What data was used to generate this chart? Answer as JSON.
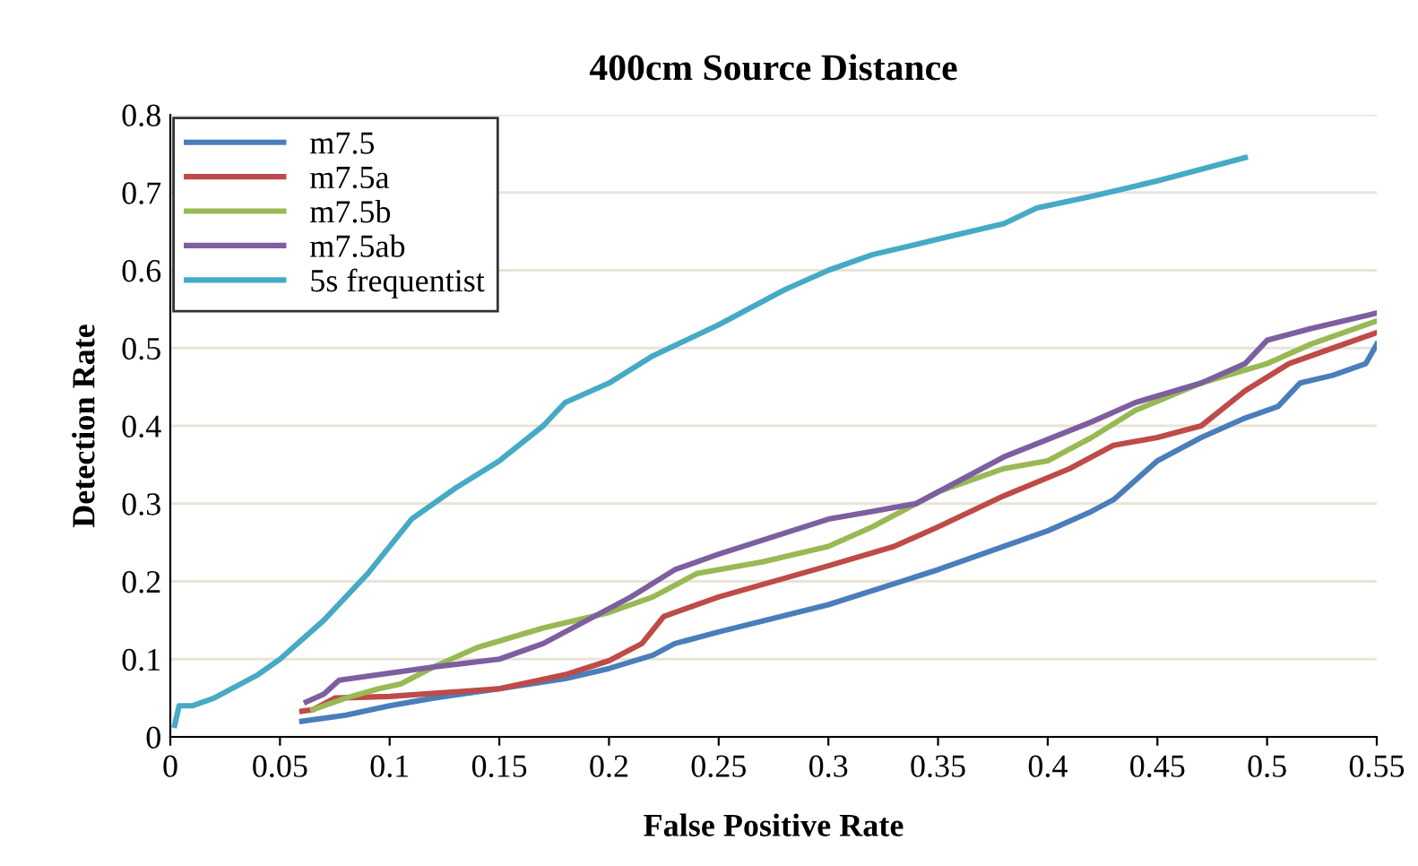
{
  "chart_data": {
    "type": "line",
    "title": "400cm Source Distance",
    "xlabel": "False Positive Rate",
    "ylabel": "Detection Rate",
    "xlim": [
      0,
      0.55
    ],
    "xticks": [
      0,
      0.05,
      0.1,
      0.15,
      0.2,
      0.25,
      0.3,
      0.35,
      0.4,
      0.45,
      0.5,
      0.55
    ],
    "ylim": [
      0,
      0.8
    ],
    "yticks": [
      0,
      0.1,
      0.2,
      0.3,
      0.4,
      0.5,
      0.6,
      0.7,
      0.8
    ],
    "grid": "y",
    "legend": "top left",
    "marker": "none",
    "line_style": "solid",
    "series": [
      {
        "name": "m7.5",
        "color": "#4a7ebb",
        "x": [
          0.06,
          0.08,
          0.1,
          0.12,
          0.15,
          0.18,
          0.2,
          0.22,
          0.23,
          0.25,
          0.3,
          0.35,
          0.4,
          0.42,
          0.43,
          0.45,
          0.47,
          0.49,
          0.505,
          0.515,
          0.53,
          0.545,
          0.55
        ],
        "values": [
          0.02,
          0.028,
          0.04,
          0.05,
          0.062,
          0.075,
          0.088,
          0.105,
          0.12,
          0.135,
          0.17,
          0.215,
          0.265,
          0.29,
          0.305,
          0.355,
          0.385,
          0.41,
          0.425,
          0.455,
          0.465,
          0.48,
          0.505
        ]
      },
      {
        "name": "m7.5a",
        "color": "#be4b48",
        "x": [
          0.06,
          0.065,
          0.075,
          0.1,
          0.15,
          0.18,
          0.2,
          0.215,
          0.225,
          0.25,
          0.3,
          0.33,
          0.35,
          0.38,
          0.41,
          0.43,
          0.45,
          0.47,
          0.49,
          0.51,
          0.53,
          0.55
        ],
        "values": [
          0.033,
          0.035,
          0.05,
          0.052,
          0.062,
          0.08,
          0.098,
          0.12,
          0.155,
          0.18,
          0.22,
          0.245,
          0.27,
          0.31,
          0.345,
          0.375,
          0.385,
          0.4,
          0.445,
          0.48,
          0.5,
          0.52
        ]
      },
      {
        "name": "m7.5b",
        "color": "#98b954",
        "x": [
          0.065,
          0.08,
          0.095,
          0.105,
          0.12,
          0.14,
          0.17,
          0.2,
          0.22,
          0.24,
          0.27,
          0.3,
          0.32,
          0.35,
          0.38,
          0.4,
          0.42,
          0.44,
          0.47,
          0.5,
          0.52,
          0.55
        ],
        "values": [
          0.035,
          0.05,
          0.062,
          0.068,
          0.09,
          0.115,
          0.14,
          0.16,
          0.18,
          0.21,
          0.225,
          0.245,
          0.27,
          0.315,
          0.345,
          0.355,
          0.385,
          0.42,
          0.455,
          0.48,
          0.505,
          0.535
        ]
      },
      {
        "name": "m7.5ab",
        "color": "#7d5fa0",
        "x": [
          0.062,
          0.07,
          0.077,
          0.09,
          0.12,
          0.15,
          0.17,
          0.19,
          0.21,
          0.23,
          0.25,
          0.3,
          0.32,
          0.34,
          0.36,
          0.38,
          0.42,
          0.44,
          0.47,
          0.49,
          0.5,
          0.52,
          0.55
        ],
        "values": [
          0.045,
          0.055,
          0.073,
          0.078,
          0.09,
          0.1,
          0.12,
          0.15,
          0.18,
          0.215,
          0.235,
          0.28,
          0.29,
          0.3,
          0.33,
          0.36,
          0.405,
          0.43,
          0.455,
          0.48,
          0.51,
          0.525,
          0.545
        ]
      },
      {
        "name": "5s frequentist",
        "color": "#46aac5",
        "x": [
          0.002,
          0.004,
          0.01,
          0.02,
          0.03,
          0.04,
          0.05,
          0.07,
          0.09,
          0.11,
          0.13,
          0.15,
          0.17,
          0.18,
          0.2,
          0.22,
          0.25,
          0.28,
          0.3,
          0.32,
          0.35,
          0.38,
          0.395,
          0.42,
          0.45,
          0.49
        ],
        "values": [
          0.015,
          0.04,
          0.04,
          0.05,
          0.065,
          0.08,
          0.1,
          0.15,
          0.21,
          0.28,
          0.32,
          0.355,
          0.4,
          0.43,
          0.455,
          0.49,
          0.53,
          0.575,
          0.6,
          0.62,
          0.64,
          0.66,
          0.68,
          0.695,
          0.715,
          0.745
        ]
      }
    ]
  }
}
